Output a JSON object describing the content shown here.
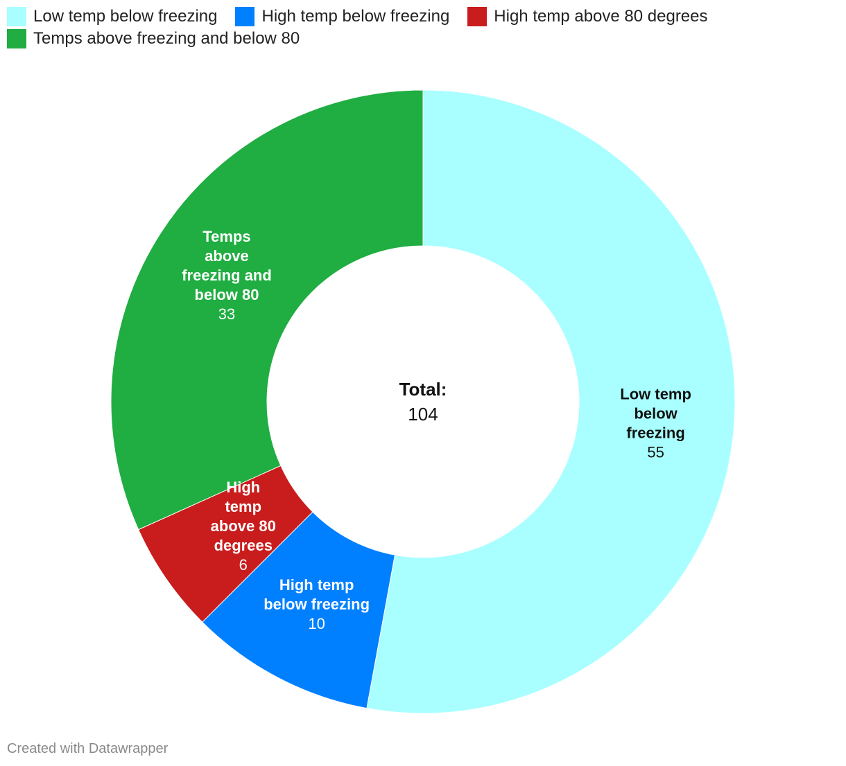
{
  "legend": [
    {
      "label": "Low temp below freezing",
      "color": "#a9ffff"
    },
    {
      "label": "High temp below freezing",
      "color": "#0080ff"
    },
    {
      "label": "High temp above 80 degrees",
      "color": "#c91d1d"
    },
    {
      "label": "Temps above freezing and below 80",
      "color": "#20ad41"
    }
  ],
  "center": {
    "title": "Total:",
    "value": "104"
  },
  "footer": "Created with Datawrapper",
  "chart_data": {
    "type": "pie",
    "variant": "donut",
    "categories": [
      "Low temp below freezing",
      "High temp below freezing",
      "High temp above 80 degrees",
      "Temps above freezing and below 80"
    ],
    "values": [
      55,
      10,
      6,
      33
    ],
    "colors": [
      "#a9ffff",
      "#0080ff",
      "#c91d1d",
      "#20ad41"
    ],
    "slice_labels": [
      {
        "lines": [
          "Low temp",
          "below",
          "freezing"
        ],
        "value": "55",
        "text_color": "#111111"
      },
      {
        "lines": [
          "High temp",
          "below freezing"
        ],
        "value": "10",
        "text_color": "#ffffff"
      },
      {
        "lines": [
          "High",
          "temp",
          "above 80",
          "degrees"
        ],
        "value": "6",
        "text_color": "#ffffff"
      },
      {
        "lines": [
          "Temps",
          "above",
          "freezing and",
          "below 80"
        ],
        "value": "33",
        "text_color": "#ffffff"
      }
    ],
    "total": 104,
    "legend_position": "top-left"
  }
}
